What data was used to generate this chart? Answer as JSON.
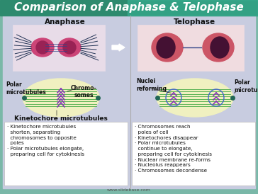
{
  "title": "Comparison of Anaphase & Telophase",
  "title_color": "#FFFFFF",
  "title_bg_left": "#2d8a6e",
  "title_bg_right": "#3ab89a",
  "bg_color": "#7ab8a8",
  "main_bg": "#c8cce0",
  "text_box_bg": "#FFFFFF",
  "anaphase_label": "Anaphase",
  "telophase_label": "Telophase",
  "photo_left_bg": "#e8dce8",
  "photo_right_bg": "#f0dce0",
  "cell_bg": "#f0f0c0",
  "left_polar": "Polar\nmicrotubules",
  "left_chromo": "Chromo-\nsomes",
  "left_kineto": "Kinetochore microtubules",
  "right_nuclei": "Nuclei\nreforming",
  "right_polar": "Polar\nmicrotubules",
  "left_bullet1": "· Kinetochore microtubules\n  shorten, separating\n  chromosomes to opposite\n  poles",
  "left_bullet2": "· Polar microtubules elongate,\n  preparing cell for cytokinesis",
  "right_bullet1": "· Chromosomes reach\n  poles of cell",
  "right_bullet2": "· Kinetochores disappear",
  "right_bullet3": "· Polar microtubules\n  continue to elongate,\n  preparing cell for cytokinesis",
  "right_bullet4": "· Nuclear membrane re-forms",
  "right_bullet5": "· Nucleolus reappears",
  "right_bullet6": "· Chromosomes decondense",
  "watermark": "www.slidebase.com"
}
